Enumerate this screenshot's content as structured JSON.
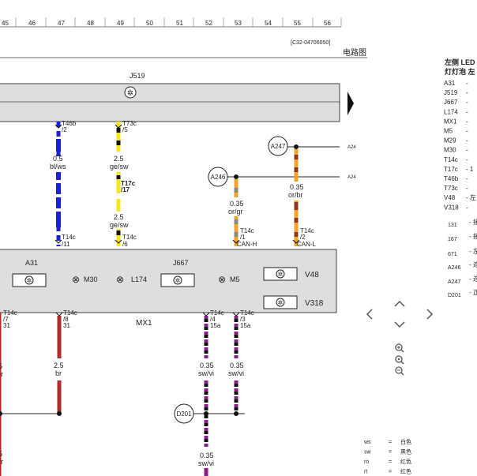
{
  "ruler": {
    "numbers": [
      "45",
      "46",
      "47",
      "48",
      "49",
      "50",
      "51",
      "52",
      "53",
      "54",
      "55",
      "56"
    ]
  },
  "header": {
    "doc_code": "[C32-04706050]",
    "title": "电路图"
  },
  "components": {
    "j519": "J519",
    "mx1": "MX1",
    "a31": "A31",
    "j667": "J667",
    "m30": "M30",
    "l174": "L174",
    "m5": "M5",
    "v48": "V48",
    "v318": "V318",
    "a247": "A247",
    "a246": "A246",
    "d201": "D201"
  },
  "wires": {
    "w1": {
      "conn_top": "T46b",
      "pin_top": "/2",
      "size": "0.5",
      "color": "bl/ws",
      "conn_bot": "T14c",
      "pin_bot": "/11"
    },
    "w2": {
      "conn_top": "T73c",
      "pin_top": "/5",
      "size": "2.5",
      "color": "ge/sw",
      "conn_mid": "T17c",
      "pin_mid": "/17",
      "size2": "2.5",
      "color2": "ge/sw",
      "conn_bot": "T14c",
      "pin_bot": "/6"
    },
    "w3": {
      "size": "0.35",
      "color": "or/gr",
      "conn_bot": "T14c",
      "pin_bot": "/1",
      "signal": "CAN-H",
      "ref": "A24"
    },
    "w4": {
      "size": "0.35",
      "color": "or/br",
      "conn_bot": "T14c",
      "pin_bot": "/2",
      "signal": "CAN-L",
      "ref": "A24"
    },
    "w5": {
      "conn": "T14c",
      "pin": "/7",
      "pin2": "31",
      "size": "5",
      "color": "r",
      "size_b": "5",
      "color_b": "r"
    },
    "w6": {
      "conn": "T14c",
      "pin": "/8",
      "pin2": "31",
      "size": "2.5",
      "color": "br"
    },
    "w7": {
      "conn": "T14c",
      "pin": "/4",
      "pin2": "15a",
      "size": "0.35",
      "color": "sw/vi",
      "size_b": "0.35",
      "color_b": "sw/vi"
    },
    "w8": {
      "conn": "T14c",
      "pin": "/3",
      "pin2": "15a",
      "size": "0.35",
      "color": "sw/vi"
    }
  },
  "legend": {
    "headers": [
      "左侧 LED 大",
      "灯灯泡 左"
    ],
    "rows": [
      {
        "code": "A31",
        "dash": "-"
      },
      {
        "code": "J519",
        "dash": "-"
      },
      {
        "code": "J667",
        "dash": "-"
      },
      {
        "code": "L174",
        "dash": "-"
      },
      {
        "code": "MX1",
        "dash": "-"
      },
      {
        "code": "M5",
        "dash": "-"
      },
      {
        "code": "M29",
        "dash": "-"
      },
      {
        "code": "M30",
        "dash": "-"
      },
      {
        "code": "T14c",
        "dash": "-"
      },
      {
        "code": "T17c",
        "dash": "- 1"
      },
      {
        "code": "T46b",
        "dash": "-"
      },
      {
        "code": "T73c",
        "dash": "-"
      },
      {
        "code": "V48",
        "dash": "- 左"
      },
      {
        "code": "V318",
        "dash": "-"
      }
    ],
    "rows2": [
      {
        "code": "131",
        "dash": "- 接"
      },
      {
        "code": "167",
        "dash": "- 接"
      },
      {
        "code": "671",
        "dash": "- 左"
      },
      {
        "code": "A246",
        "dash": "- 连"
      },
      {
        "code": "A247",
        "dash": "- 连"
      },
      {
        "code": "D201",
        "dash": "- 正"
      }
    ]
  },
  "color_key": [
    {
      "abbr": "ws",
      "eq": "=",
      "name": "白色"
    },
    {
      "abbr": "sw",
      "eq": "=",
      "name": "黑色"
    },
    {
      "abbr": "ro",
      "eq": "=",
      "name": "红色"
    },
    {
      "abbr": "rt",
      "eq": "=",
      "name": "红色"
    }
  ],
  "colors": {
    "blue": "#1f1fd8",
    "yellow": "#f4e81c",
    "orange": "#f3a427",
    "red": "#b02a2a",
    "purple": "#8b1d8b",
    "grey": "#888888",
    "box": "#dedede"
  }
}
